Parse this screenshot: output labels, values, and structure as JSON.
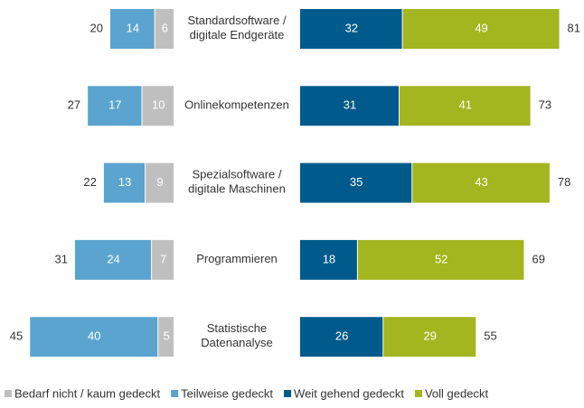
{
  "chart_data": {
    "type": "diverging_bar",
    "categories": [
      [
        "Standardsoftware /",
        "digitale Endgeräte"
      ],
      [
        "Onlinekompetenzen"
      ],
      [
        "Spezialsoftware /",
        "digitale Maschinen"
      ],
      [
        "Programmieren"
      ],
      [
        "Statistische",
        "Datenanalyse"
      ]
    ],
    "series": [
      {
        "name": "Bedarf nicht / kaum gedeckt",
        "color": "#bfbfbf",
        "side": "left",
        "values": [
          6,
          10,
          9,
          7,
          5
        ]
      },
      {
        "name": "Teilweise gedeckt",
        "color": "#5ba4cf",
        "side": "left",
        "values": [
          14,
          17,
          13,
          24,
          40
        ]
      },
      {
        "name": "Weit gehend gedeckt",
        "color": "#005a8c",
        "side": "right",
        "values": [
          32,
          31,
          35,
          18,
          26
        ]
      },
      {
        "name": "Voll gedeckt",
        "color": "#a3b51f",
        "side": "right",
        "values": [
          49,
          41,
          43,
          52,
          29
        ]
      }
    ],
    "totals_left": [
      20,
      27,
      22,
      31,
      45
    ],
    "totals_right": [
      81,
      73,
      78,
      69,
      55
    ]
  }
}
